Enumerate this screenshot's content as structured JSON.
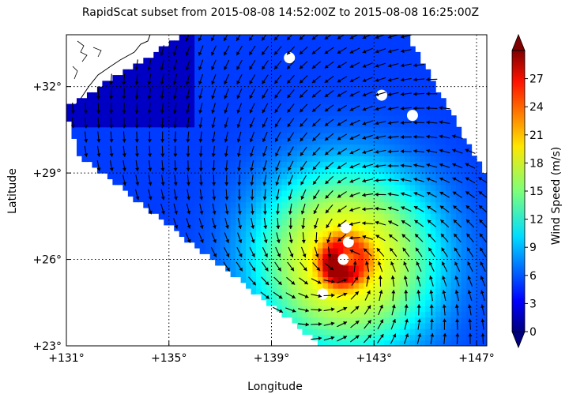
{
  "chart_data": {
    "type": "heatmap",
    "title": "RapidScat subset from 2015-08-08 14:52:00Z to 2015-08-08 16:25:00Z",
    "xlabel": "Longitude",
    "ylabel": "Latitude",
    "xlim": [
      131,
      147.4
    ],
    "ylim": [
      23,
      33.8
    ],
    "x_ticks": [
      {
        "value": 131,
        "label": "+131°"
      },
      {
        "value": 135,
        "label": "+135°"
      },
      {
        "value": 139,
        "label": "+139°"
      },
      {
        "value": 143,
        "label": "+143°"
      },
      {
        "value": 147,
        "label": "+147°"
      }
    ],
    "y_ticks": [
      {
        "value": 23,
        "label": "+23°"
      },
      {
        "value": 26,
        "label": "+26°"
      },
      {
        "value": 29,
        "label": "+29°"
      },
      {
        "value": 32,
        "label": "+32°"
      }
    ],
    "grid": true,
    "colorbar": {
      "label": "Wind Speed (m/s)",
      "min": 0,
      "max": 30,
      "ticks": [
        0,
        3,
        6,
        9,
        12,
        15,
        18,
        21,
        24,
        27
      ],
      "colormap": "jet",
      "extend": "both"
    },
    "storm_center": {
      "lon": 141.9,
      "lat": 26.0
    },
    "peak_wind": {
      "lon": 141.6,
      "lat": 25.75,
      "value": 28
    },
    "swath_polygon": [
      [
        131.0,
        31.3
      ],
      [
        135.6,
        33.8
      ],
      [
        144.3,
        33.8
      ],
      [
        147.6,
        28.5
      ],
      [
        147.4,
        23.0
      ],
      [
        141.0,
        23.0
      ],
      [
        131.4,
        29.7
      ]
    ],
    "rain_flag_points": [
      {
        "lon": 141.9,
        "lat": 27.1
      },
      {
        "lon": 142.0,
        "lat": 26.6
      },
      {
        "lon": 141.8,
        "lat": 26.0
      },
      {
        "lon": 139.7,
        "lat": 33.0
      },
      {
        "lon": 143.3,
        "lat": 31.7
      },
      {
        "lon": 144.5,
        "lat": 31.0
      },
      {
        "lon": 141.0,
        "lat": 24.8
      }
    ]
  }
}
